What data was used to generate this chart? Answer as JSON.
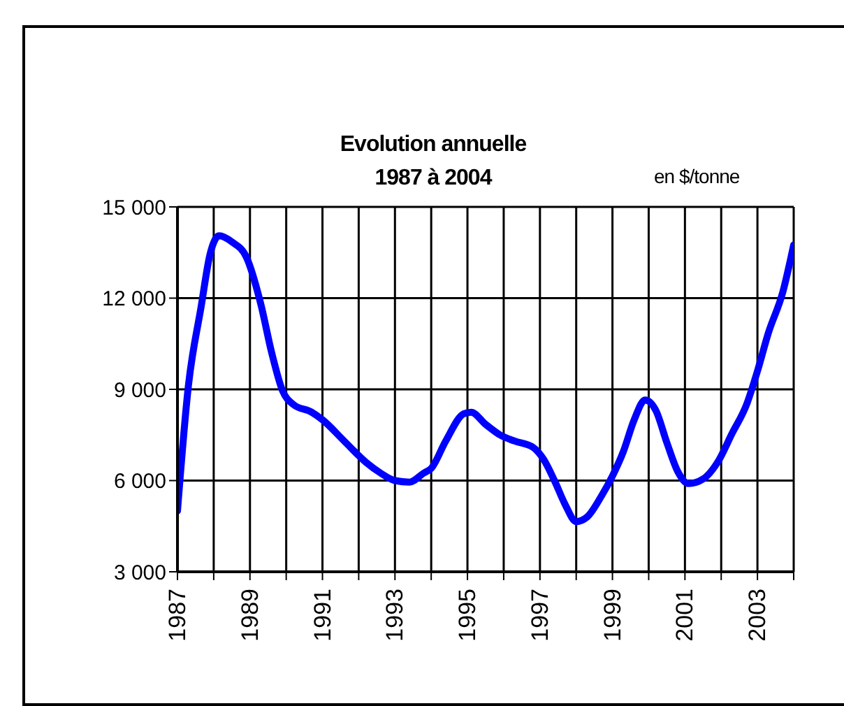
{
  "chart_data": {
    "type": "line",
    "title": "Evolution annuelle\n1987 à 2004",
    "ylabel": "en $/tonne",
    "x": [
      1987,
      1987.3,
      1987.65,
      1987.9,
      1988.15,
      1988.5,
      1988.9,
      1989.3,
      1989.6,
      1989.9,
      1990.2,
      1990.7,
      1991,
      1991.6,
      1992.2,
      1992.6,
      1993,
      1993.4,
      1993.8,
      1994,
      1994.4,
      1994.9,
      1995.1,
      1995.5,
      1995.9,
      1996.3,
      1996.8,
      1997.1,
      1997.4,
      1997.7,
      1998,
      1998.3,
      1998.7,
      1999,
      1999.3,
      1999.6,
      1999.9,
      2000.2,
      2000.5,
      2000.8,
      2001.1,
      2001.5,
      2001.9,
      2002.3,
      2002.7,
      2003,
      2003.3,
      2003.7,
      2004
    ],
    "series": [
      {
        "color": "#0000ff",
        "values": [
          5000,
          9100,
          11700,
          13450,
          14050,
          13850,
          13350,
          11800,
          10200,
          8950,
          8500,
          8250,
          8000,
          7300,
          6600,
          6250,
          6000,
          5950,
          6250,
          6400,
          7300,
          8200,
          8250,
          7850,
          7500,
          7300,
          7100,
          6700,
          6000,
          5200,
          4650,
          4800,
          5500,
          6150,
          6950,
          8000,
          8650,
          8300,
          7250,
          6300,
          5900,
          6050,
          6600,
          7550,
          8500,
          9600,
          10850,
          12200,
          13750
        ]
      }
    ],
    "xlim": [
      1987,
      2004
    ],
    "xticks": [
      1987,
      {
        "value": 1988,
        "label": null
      },
      1989,
      {
        "value": 1990,
        "label": null
      },
      1991,
      {
        "value": 1992,
        "label": null
      },
      1993,
      {
        "value": 1994,
        "label": null
      },
      1995,
      {
        "value": 1996,
        "label": null
      },
      1997,
      {
        "value": 1998,
        "label": null
      },
      1999,
      {
        "value": 2000,
        "label": null
      },
      2001,
      {
        "value": 2002,
        "label": null
      },
      2003,
      {
        "value": 2004,
        "label": null
      }
    ],
    "ylim": [
      3000,
      15000
    ],
    "yticks": [
      {
        "value": 3000,
        "label": "3 000"
      },
      {
        "value": 6000,
        "label": "6 000"
      },
      {
        "value": 9000,
        "label": "9 000"
      },
      {
        "value": 12000,
        "label": "12 000"
      },
      {
        "value": 15000,
        "label": "15 000"
      }
    ],
    "grid": true,
    "legend": false,
    "marker": "none",
    "line_style": "solid"
  }
}
